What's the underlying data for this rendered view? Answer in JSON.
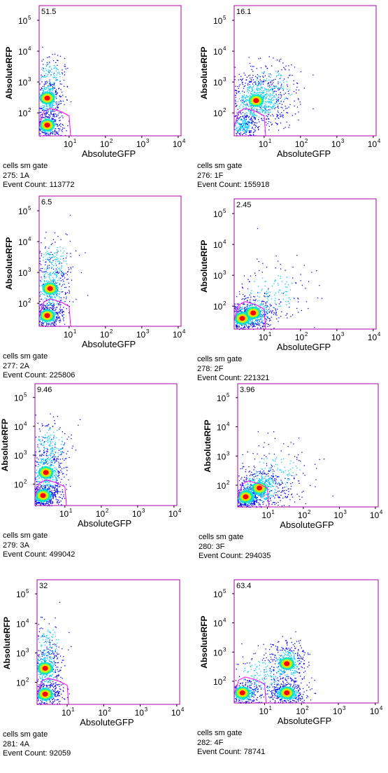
{
  "x_axis_label": "AbsoluteGFP",
  "y_axis_label": "AbsoluteRFP",
  "y_tick_labels": [
    "10",
    "10",
    "10",
    "10",
    "10"
  ],
  "y_tick_exponents": [
    "2",
    "3",
    "4",
    "5",
    ""
  ],
  "x_tick_labels": [
    "10",
    "10",
    "10",
    "10"
  ],
  "x_tick_exponents": [
    "1",
    "2",
    "3",
    "4"
  ],
  "panels": [
    {
      "gate_percent": "51.5",
      "gate_name": "cells sm gate",
      "sample": "275: 1A",
      "event_count": "Event Count: 113772"
    },
    {
      "gate_percent": "16.1",
      "gate_name": "cells sm gate",
      "sample": "276: 1F",
      "event_count": "Event Count: 155918"
    },
    {
      "gate_percent": "6.5",
      "gate_name": "cells sm gate",
      "sample": "277: 2A",
      "event_count": "Event Count: 225806"
    },
    {
      "gate_percent": "2.45",
      "gate_name": "cells sm gate",
      "sample": "278: 2F",
      "event_count": "Event Count: 221321"
    },
    {
      "gate_percent": "9.46",
      "gate_name": "cells sm gate",
      "sample": "279: 3A",
      "event_count": "Event Count: 499042"
    },
    {
      "gate_percent": "3.96",
      "gate_name": "cells sm gate",
      "sample": "280: 3F",
      "event_count": "Event Count: 294035"
    },
    {
      "gate_percent": "32",
      "gate_name": "cells sm gate",
      "sample": "281: 4A",
      "event_count": "Event Count: 92059"
    },
    {
      "gate_percent": "63.4",
      "gate_name": "cells sm gate",
      "sample": "282: 4F",
      "event_count": "Event Count: 78741"
    }
  ],
  "colors": {
    "frame": "#aa00aa",
    "gate": "#ff00ff",
    "density_low": "#0000ff",
    "density_mid": "#00c8ff",
    "density_high": "#ff0000"
  },
  "chart_data": {
    "type": "scatter",
    "title": "",
    "xlabel": "AbsoluteGFP",
    "ylabel": "AbsoluteRFP",
    "x_scale": "log",
    "y_scale": "log",
    "xlim": [
      1.5,
      12000
    ],
    "ylim": [
      18,
      300000
    ],
    "x_ticks": [
      10,
      100,
      1000,
      10000
    ],
    "y_ticks": [
      100,
      1000,
      10000,
      100000
    ],
    "series": [
      {
        "gate_percent": 51.5,
        "events": 113772,
        "clusters": [
          {
            "x": 2.5,
            "y": 40,
            "sx": 0.2,
            "sy": 0.2,
            "n": 350
          },
          {
            "x": 2.5,
            "y": 300,
            "sx": 0.2,
            "sy": 0.35,
            "n": 380
          },
          {
            "x": 3,
            "y": 1500,
            "sx": 0.25,
            "sy": 0.4,
            "n": 140
          }
        ]
      },
      {
        "gate_percent": 16.1,
        "events": 155918,
        "clusters": [
          {
            "x": 2.5,
            "y": 40,
            "sx": 0.2,
            "sy": 0.2,
            "n": 250
          },
          {
            "x": 6,
            "y": 250,
            "sx": 0.45,
            "sy": 0.45,
            "n": 700
          },
          {
            "x": 15,
            "y": 600,
            "sx": 0.5,
            "sy": 0.5,
            "n": 180
          }
        ]
      },
      {
        "gate_percent": 6.5,
        "events": 225806,
        "clusters": [
          {
            "x": 2.5,
            "y": 40,
            "sx": 0.2,
            "sy": 0.2,
            "n": 420
          },
          {
            "x": 3,
            "y": 300,
            "sx": 0.25,
            "sy": 0.5,
            "n": 380
          },
          {
            "x": 4,
            "y": 2500,
            "sx": 0.3,
            "sy": 0.45,
            "n": 160
          }
        ]
      },
      {
        "gate_percent": 2.45,
        "events": 221321,
        "clusters": [
          {
            "x": 2.5,
            "y": 40,
            "sx": 0.25,
            "sy": 0.2,
            "n": 500
          },
          {
            "x": 5,
            "y": 60,
            "sx": 0.35,
            "sy": 0.3,
            "n": 350
          },
          {
            "x": 15,
            "y": 300,
            "sx": 0.55,
            "sy": 0.55,
            "n": 160
          }
        ]
      },
      {
        "gate_percent": 9.46,
        "events": 499042,
        "clusters": [
          {
            "x": 2.5,
            "y": 40,
            "sx": 0.2,
            "sy": 0.2,
            "n": 550
          },
          {
            "x": 3,
            "y": 250,
            "sx": 0.25,
            "sy": 0.5,
            "n": 450
          },
          {
            "x": 4,
            "y": 2500,
            "sx": 0.3,
            "sy": 0.45,
            "n": 180
          }
        ]
      },
      {
        "gate_percent": 3.96,
        "events": 294035,
        "clusters": [
          {
            "x": 2.5,
            "y": 40,
            "sx": 0.2,
            "sy": 0.2,
            "n": 450
          },
          {
            "x": 6,
            "y": 80,
            "sx": 0.4,
            "sy": 0.35,
            "n": 550
          },
          {
            "x": 20,
            "y": 300,
            "sx": 0.55,
            "sy": 0.5,
            "n": 160
          }
        ]
      },
      {
        "gate_percent": 32,
        "events": 92059,
        "clusters": [
          {
            "x": 2.5,
            "y": 40,
            "sx": 0.2,
            "sy": 0.2,
            "n": 350
          },
          {
            "x": 2.5,
            "y": 300,
            "sx": 0.22,
            "sy": 0.45,
            "n": 380
          },
          {
            "x": 3,
            "y": 2500,
            "sx": 0.25,
            "sy": 0.4,
            "n": 110
          }
        ]
      },
      {
        "gate_percent": 63.4,
        "events": 78741,
        "clusters": [
          {
            "x": 2.5,
            "y": 40,
            "sx": 0.25,
            "sy": 0.2,
            "n": 380
          },
          {
            "x": 40,
            "y": 40,
            "sx": 0.25,
            "sy": 0.2,
            "n": 420
          },
          {
            "x": 40,
            "y": 400,
            "sx": 0.25,
            "sy": 0.4,
            "n": 380
          },
          {
            "x": 8,
            "y": 150,
            "sx": 0.45,
            "sy": 0.45,
            "n": 200
          }
        ]
      }
    ]
  }
}
